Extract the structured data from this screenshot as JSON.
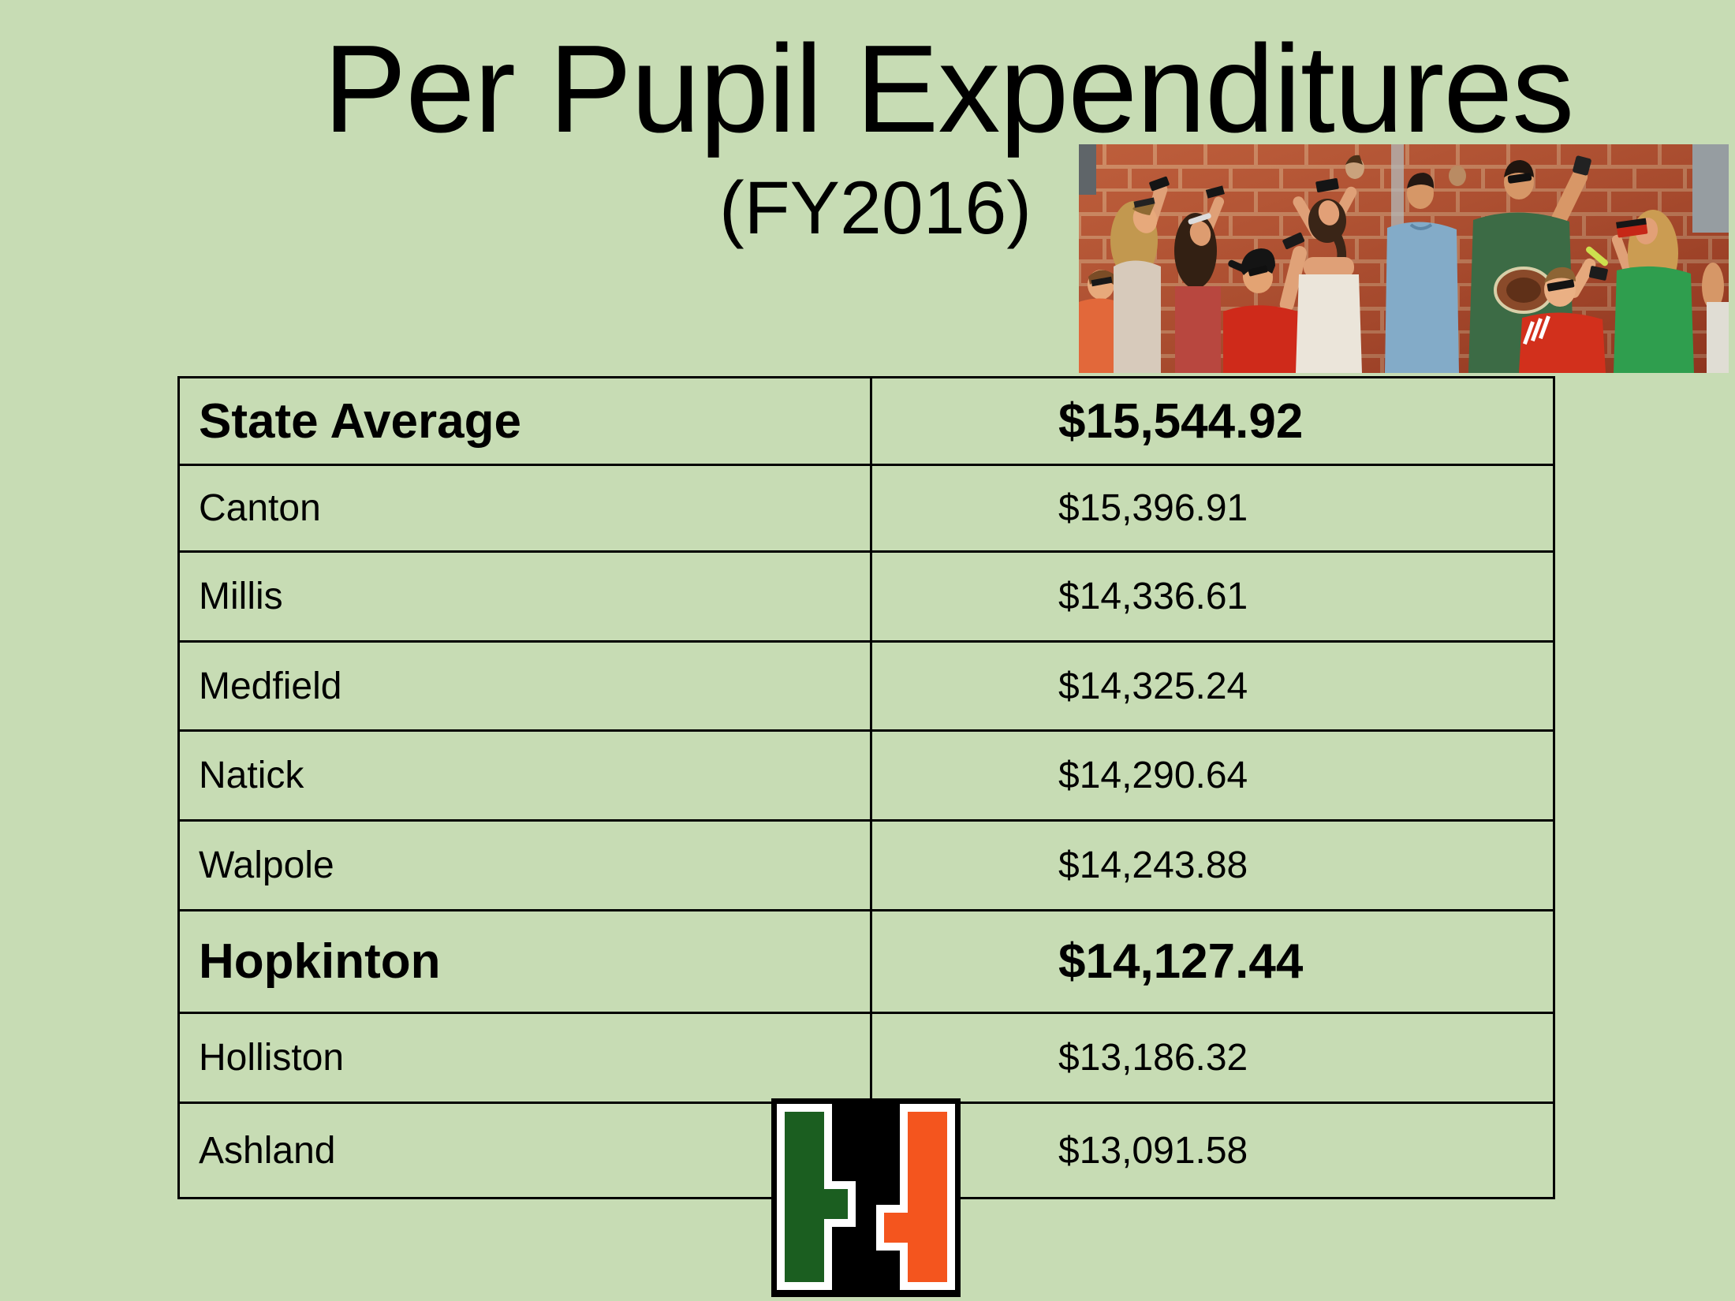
{
  "slide": {
    "title": "Per Pupil Expenditures",
    "subtitle": "(FY2016)",
    "background_color": "#c7dcb4",
    "text_color": "#000000"
  },
  "table": {
    "rows": [
      {
        "label": "State Average",
        "value": "$15,544.92",
        "emphasis": true
      },
      {
        "label": "Canton",
        "value": "$15,396.91",
        "emphasis": false
      },
      {
        "label": "Millis",
        "value": "$14,336.61",
        "emphasis": false
      },
      {
        "label": "Medfield",
        "value": "$14,325.24",
        "emphasis": false
      },
      {
        "label": "Natick",
        "value": "$14,290.64",
        "emphasis": false
      },
      {
        "label": "Walpole",
        "value": "$14,243.88",
        "emphasis": false
      },
      {
        "label": "Hopkinton",
        "value": "$14,127.44",
        "emphasis": true
      },
      {
        "label": "Holliston",
        "value": "$13,186.32",
        "emphasis": false
      },
      {
        "label": "Ashland",
        "value": "$13,091.58",
        "emphasis": false
      }
    ]
  },
  "images": {
    "photo": "crowd-looking-up-eclipse-photo",
    "logo": "hopkinton-h-logo"
  },
  "logo_colors": {
    "black": "#000000",
    "white": "#ffffff",
    "green": "#1b5e20",
    "orange": "#f4551e"
  }
}
